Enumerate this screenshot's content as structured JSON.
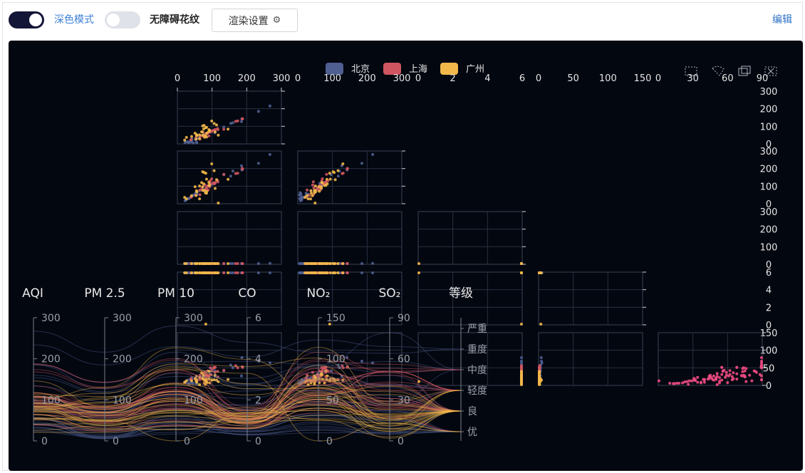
{
  "toolbar": {
    "dark_mode_label": "深色模式",
    "dark_mode_on": true,
    "accessible_pattern_label": "无障碍花纹",
    "accessible_pattern_on": false,
    "render_settings_label": "渲染设置",
    "edit_label": "编辑"
  },
  "colors": {
    "background": "#030710",
    "beijing": "#4f5f92",
    "shanghai": "#cf5560",
    "guangzhou": "#f2b84a",
    "highlight": "#ee4b82"
  },
  "chart_data": {
    "type": "scatter",
    "legend": {
      "placement": "top-center",
      "entries": [
        "北京",
        "上海",
        "广州"
      ]
    },
    "toolbox_icons": [
      "rect-select-icon",
      "lasso-select-icon",
      "keep-select-icon",
      "clear-select-icon"
    ],
    "dimensions": [
      "AQI",
      "PM 2.5",
      "PM 10",
      "CO",
      "NO₂",
      "SO₂",
      "等级"
    ],
    "scatter_matrix": {
      "x_axes": [
        {
          "dim": "AQI",
          "ticks": [
            "0",
            "100",
            "200",
            "300"
          ],
          "range": [
            0,
            300
          ]
        },
        {
          "dim": "PM 2.5",
          "ticks": [
            "0",
            "100",
            "200",
            "300"
          ],
          "range": [
            0,
            300
          ]
        },
        {
          "dim": "PM 10",
          "ticks": [
            "0",
            "2",
            "4",
            "6"
          ],
          "range": [
            0,
            6
          ]
        },
        {
          "dim": "CO",
          "ticks": [
            "0",
            "50",
            "100",
            "150"
          ],
          "range": [
            0,
            150
          ]
        },
        {
          "dim": "NO₂",
          "ticks": [
            "0",
            "30",
            "60",
            "90"
          ],
          "range": [
            0,
            90
          ]
        }
      ],
      "y_axes": [
        {
          "dim": "PM 2.5",
          "ticks": [
            "0",
            "100",
            "200",
            "300"
          ],
          "range": [
            0,
            300
          ]
        },
        {
          "dim": "PM 10",
          "ticks": [
            "0",
            "100",
            "200",
            "300"
          ],
          "range": [
            0,
            300
          ]
        },
        {
          "dim": "CO",
          "ticks": [
            "0",
            "100",
            "200",
            "300"
          ],
          "range": [
            0,
            300
          ]
        },
        {
          "dim": "NO₂",
          "ticks": [
            "0",
            "2",
            "4",
            "6"
          ],
          "range": [
            0,
            6
          ]
        },
        {
          "dim": "SO₂",
          "ticks": [
            "0",
            "50",
            "100",
            "150"
          ],
          "range": [
            0,
            150
          ]
        }
      ]
    },
    "parallel_axes": [
      {
        "name": "AQI",
        "ticks": [
          "0",
          "100",
          "200",
          "300"
        ],
        "range": [
          0,
          300
        ]
      },
      {
        "name": "PM 2.5",
        "ticks": [
          "0",
          "100",
          "200",
          "300"
        ],
        "range": [
          0,
          300
        ]
      },
      {
        "name": "PM 10",
        "ticks": [
          "0",
          "100",
          "200",
          "300"
        ],
        "range": [
          0,
          300
        ]
      },
      {
        "name": "CO",
        "ticks": [
          "0",
          "2",
          "4",
          "6"
        ],
        "range": [
          0,
          6
        ]
      },
      {
        "name": "NO₂",
        "ticks": [
          "0",
          "50",
          "100",
          "150"
        ],
        "range": [
          0,
          150
        ]
      },
      {
        "name": "SO₂",
        "ticks": [
          "0",
          "30",
          "60",
          "90"
        ],
        "range": [
          0,
          90
        ]
      },
      {
        "name": "等级",
        "categories": [
          "优",
          "良",
          "轻度",
          "中度",
          "重度",
          "严重"
        ]
      }
    ],
    "series": [
      {
        "name": "北京",
        "points": [
          [
            55,
            9,
            56,
            0.46,
            18,
            6,
            "良"
          ],
          [
            25,
            11,
            21,
            0.65,
            34,
            9,
            "优"
          ],
          [
            56,
            7,
            63,
            0.3,
            14,
            5,
            "良"
          ],
          [
            33,
            7,
            29,
            0.33,
            16,
            6,
            "优"
          ],
          [
            42,
            24,
            44,
            0.76,
            40,
            16,
            "优"
          ],
          [
            82,
            58,
            90,
            1.77,
            68,
            33,
            "良"
          ],
          [
            74,
            49,
            77,
            1.46,
            48,
            27,
            "良"
          ],
          [
            78,
            55,
            80,
            1.29,
            59,
            29,
            "良"
          ],
          [
            267,
            216,
            280,
            4.8,
            108,
            64,
            "重度"
          ],
          [
            185,
            127,
            216,
            2.52,
            61,
            27,
            "中度"
          ],
          [
            39,
            19,
            38,
            0.57,
            31,
            15,
            "优"
          ],
          [
            41,
            11,
            40,
            0.43,
            21,
            7,
            "优"
          ],
          [
            64,
            38,
            74,
            1.04,
            46,
            22,
            "良"
          ],
          [
            108,
            79,
            120,
            1.7,
            75,
            41,
            "轻度"
          ],
          [
            108,
            63,
            116,
            1.48,
            44,
            26,
            "轻度"
          ],
          [
            33,
            6,
            29,
            0.34,
            13,
            5,
            "优"
          ],
          [
            94,
            66,
            110,
            1.54,
            62,
            31,
            "良"
          ],
          [
            186,
            142,
            192,
            3.88,
            93,
            79,
            "中度"
          ],
          [
            57,
            31,
            54,
            0.96,
            32,
            14,
            "良"
          ],
          [
            22,
            8,
            17,
            0.48,
            23,
            10,
            "优"
          ],
          [
            39,
            15,
            36,
            0.61,
            29,
            13,
            "优"
          ],
          [
            94,
            69,
            114,
            2.08,
            73,
            39,
            "良"
          ],
          [
            99,
            73,
            110,
            2.43,
            76,
            48,
            "良"
          ],
          [
            31,
            12,
            30,
            0.5,
            32,
            16,
            "优"
          ],
          [
            42,
            27,
            43,
            1,
            53,
            22,
            "优"
          ],
          [
            154,
            117,
            157,
            3.05,
            92,
            58,
            "中度"
          ],
          [
            234,
            185,
            230,
            4.09,
            123,
            69,
            "重度"
          ],
          [
            160,
            120,
            186,
            2.77,
            91,
            50,
            "中度"
          ],
          [
            134,
            96,
            165,
            2.76,
            83,
            41,
            "轻度"
          ],
          [
            52,
            24,
            60,
            1.03,
            50,
            21,
            "良"
          ],
          [
            46,
            5,
            49,
            0.28,
            10,
            6,
            "优"
          ]
        ]
      },
      {
        "name": "上海",
        "points": [
          [
            91,
            45,
            125,
            0.82,
            34,
            23,
            "良"
          ],
          [
            65,
            27,
            78,
            0.86,
            45,
            29,
            "良"
          ],
          [
            83,
            60,
            84,
            1.09,
            73,
            27,
            "良"
          ],
          [
            109,
            81,
            121,
            1.28,
            68,
            51,
            "轻度"
          ],
          [
            106,
            77,
            114,
            1.07,
            55,
            51,
            "轻度"
          ],
          [
            109,
            81,
            121,
            1.28,
            68,
            51,
            "轻度"
          ],
          [
            106,
            77,
            114,
            1.07,
            55,
            51,
            "轻度"
          ],
          [
            89,
            65,
            78,
            0.86,
            51,
            26,
            "良"
          ],
          [
            53,
            33,
            47,
            0.64,
            50,
            17,
            "良"
          ],
          [
            80,
            55,
            80,
            1.01,
            75,
            24,
            "良"
          ],
          [
            117,
            81,
            124,
            1.03,
            45,
            24,
            "轻度"
          ],
          [
            99,
            71,
            142,
            1.1,
            62,
            42,
            "良"
          ],
          [
            95,
            69,
            130,
            1.28,
            74,
            50,
            "良"
          ],
          [
            116,
            87,
            131,
            1.47,
            84,
            40,
            "轻度"
          ],
          [
            108,
            80,
            121,
            1.3,
            85,
            37,
            "轻度"
          ],
          [
            134,
            83,
            167,
            1.16,
            57,
            43,
            "轻度"
          ],
          [
            79,
            43,
            107,
            1.05,
            59,
            37,
            "良"
          ],
          [
            71,
            46,
            89,
            0.86,
            64,
            25,
            "良"
          ],
          [
            97,
            71,
            113,
            1.17,
            88,
            31,
            "良"
          ],
          [
            84,
            57,
            91,
            0.85,
            55,
            31,
            "良"
          ],
          [
            87,
            63,
            101,
            0.9,
            56,
            41,
            "良"
          ],
          [
            104,
            77,
            119,
            1.09,
            73,
            48,
            "轻度"
          ],
          [
            87,
            62,
            100,
            1,
            72,
            28,
            "良"
          ],
          [
            168,
            128,
            172,
            1.49,
            97,
            56,
            "中度"
          ],
          [
            65,
            45,
            51,
            0.74,
            39,
            17,
            "良"
          ],
          [
            39,
            24,
            38,
            0.61,
            47,
            17,
            "优"
          ],
          [
            39,
            24,
            39,
            0.59,
            50,
            19,
            "优"
          ],
          [
            93,
            68,
            96,
            1.05,
            79,
            29,
            "良"
          ],
          [
            188,
            143,
            197,
            1.66,
            99,
            51,
            "中度"
          ],
          [
            174,
            131,
            174,
            1.55,
            108,
            50,
            "中度"
          ],
          [
            187,
            143,
            201,
            1.39,
            89,
            53,
            "中度"
          ]
        ]
      },
      {
        "name": "广州",
        "points": [
          [
            26,
            37,
            27,
            1.163,
            27,
            13,
            "优"
          ],
          [
            85,
            62,
            71,
            1.195,
            60,
            8,
            "良"
          ],
          [
            78,
            38,
            74,
            1.363,
            37,
            7,
            "良"
          ],
          [
            21,
            21,
            36,
            0.634,
            40,
            9,
            "优"
          ],
          [
            41,
            42,
            46,
            0.915,
            81,
            13,
            "优"
          ],
          [
            56,
            52,
            69,
            1.067,
            92,
            16,
            "良"
          ],
          [
            64,
            30,
            28,
            0.924,
            51,
            2,
            "良"
          ],
          [
            55,
            48,
            74,
            1.236,
            75,
            26,
            "良"
          ],
          [
            76,
            85,
            113,
            1.237,
            114,
            27,
            "良"
          ],
          [
            91,
            81,
            104,
            1.041,
            56,
            40,
            "良"
          ],
          [
            84,
            39,
            60,
            0.964,
            25,
            11,
            "良"
          ],
          [
            64,
            51,
            101,
            0.862,
            58,
            23,
            "良"
          ],
          [
            70,
            69,
            120,
            1.198,
            65,
            36,
            "良"
          ],
          [
            77,
            105,
            178,
            2.549,
            64,
            16,
            "良"
          ],
          [
            109,
            68,
            87,
            0.996,
            74,
            29,
            "轻度"
          ],
          [
            73,
            68,
            97,
            0.905,
            51,
            34,
            "良"
          ],
          [
            54,
            27,
            47,
            0.592,
            53,
            12,
            "良"
          ],
          [
            51,
            61,
            97,
            0.811,
            65,
            19,
            "良"
          ],
          [
            91,
            71,
            121,
            1.374,
            43,
            18,
            "良"
          ],
          [
            73,
            102,
            182,
            2.787,
            44,
            19,
            "良"
          ],
          [
            73,
            50,
            76,
            0.717,
            31,
            20,
            "良"
          ],
          [
            84,
            94,
            140,
            2.238,
            68,
            18,
            "良"
          ],
          [
            93,
            77,
            104,
            1.165,
            53,
            7,
            "良"
          ],
          [
            99,
            130,
            227,
            3.97,
            55,
            15,
            "良"
          ],
          [
            146,
            84,
            139,
            1.094,
            40,
            17,
            "轻度"
          ],
          [
            113,
            108,
            137,
            1.481,
            48,
            15,
            "轻度"
          ],
          [
            81,
            48,
            62,
            1.619,
            26,
            3,
            "良"
          ],
          [
            56,
            48,
            68,
            1.336,
            37,
            9,
            "良"
          ],
          [
            82,
            92,
            174,
            3.29,
            0,
            13,
            "良"
          ],
          [
            106,
            116,
            188,
            3.628,
            101,
            16,
            "轻度"
          ],
          [
            118,
            50,
            0,
            1.383,
            76,
            11,
            "轻度"
          ]
        ]
      }
    ]
  }
}
